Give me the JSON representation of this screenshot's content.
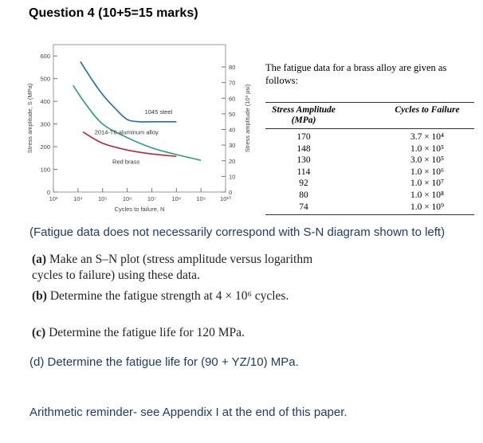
{
  "question_title": "Question 4 (10+5=15 marks)",
  "intro": "The fatigue data for a brass alloy are given as follows:",
  "table": {
    "col1_header": "Stress Amplitude (MPa)",
    "col2_header": "Cycles to Failure",
    "rows": [
      {
        "stress": "170",
        "cycles": "3.7 × 10⁴"
      },
      {
        "stress": "148",
        "cycles": "1.0 × 10⁵"
      },
      {
        "stress": "130",
        "cycles": "3.0 × 10⁵"
      },
      {
        "stress": "114",
        "cycles": "1.0 × 10⁶"
      },
      {
        "stress": "92",
        "cycles": "1.0 × 10⁷"
      },
      {
        "stress": "80",
        "cycles": "1.0 × 10⁸"
      },
      {
        "stress": "74",
        "cycles": "1.0 × 10⁹"
      }
    ]
  },
  "note": "(Fatigue data does not necessarily correspond with S-N diagram shown to left)",
  "parts": {
    "a_label": "(a)",
    "a_text": "Make an S–N plot (stress amplitude versus logarithm cycles to failure) using these data.",
    "b_label": "(b)",
    "b_text": "Determine the fatigue strength at 4 × 10⁶ cycles.",
    "c_label": "(c)",
    "c_text": "Determine the fatigue life for 120 MPa.",
    "d_text": "(d) Determine the fatigue life for (90 + YZ/10) MPa."
  },
  "reminder": "Arithmetic reminder- see Appendix I at the end of this paper.",
  "chart_data": {
    "type": "line",
    "xlabel": "Cycles to failure, N",
    "ylabel_left": "Stress amplitude, S (MPa)",
    "ylabel_right": "Stress amplitude (10³ psi)",
    "x_scale": "log",
    "x_ticks": [
      "10³",
      "10⁴",
      "10⁵",
      "10⁶",
      "10⁷",
      "10⁸",
      "10⁹",
      "10¹⁰"
    ],
    "xlim_exp": [
      3,
      10
    ],
    "ylim_left": [
      0,
      650
    ],
    "yticks_left": [
      0,
      100,
      200,
      300,
      400,
      500,
      600
    ],
    "yticks_right": [
      "0",
      "10",
      "20",
      "30",
      "40",
      "50",
      "60",
      "70",
      "80"
    ],
    "series": [
      {
        "name": "1045 steel",
        "color": "#1e6fa8",
        "points": [
          [
            4.1,
            575
          ],
          [
            4.6,
            490
          ],
          [
            5.0,
            430
          ],
          [
            5.5,
            370
          ],
          [
            6.0,
            320
          ],
          [
            6.5,
            310
          ],
          [
            7.0,
            310
          ],
          [
            8.0,
            310
          ]
        ]
      },
      {
        "name": "2014-T6 aluminum alloy",
        "color": "#2a9d7a",
        "points": [
          [
            3.8,
            470
          ],
          [
            4.3,
            390
          ],
          [
            5.0,
            300
          ],
          [
            6.0,
            240
          ],
          [
            7.0,
            195
          ],
          [
            8.0,
            165
          ],
          [
            9.0,
            140
          ]
        ]
      },
      {
        "name": "Red brass",
        "color": "#b8283a",
        "points": [
          [
            4.2,
            265
          ],
          [
            5.0,
            215
          ],
          [
            6.0,
            185
          ],
          [
            7.0,
            168
          ],
          [
            8.0,
            157
          ]
        ]
      }
    ]
  }
}
